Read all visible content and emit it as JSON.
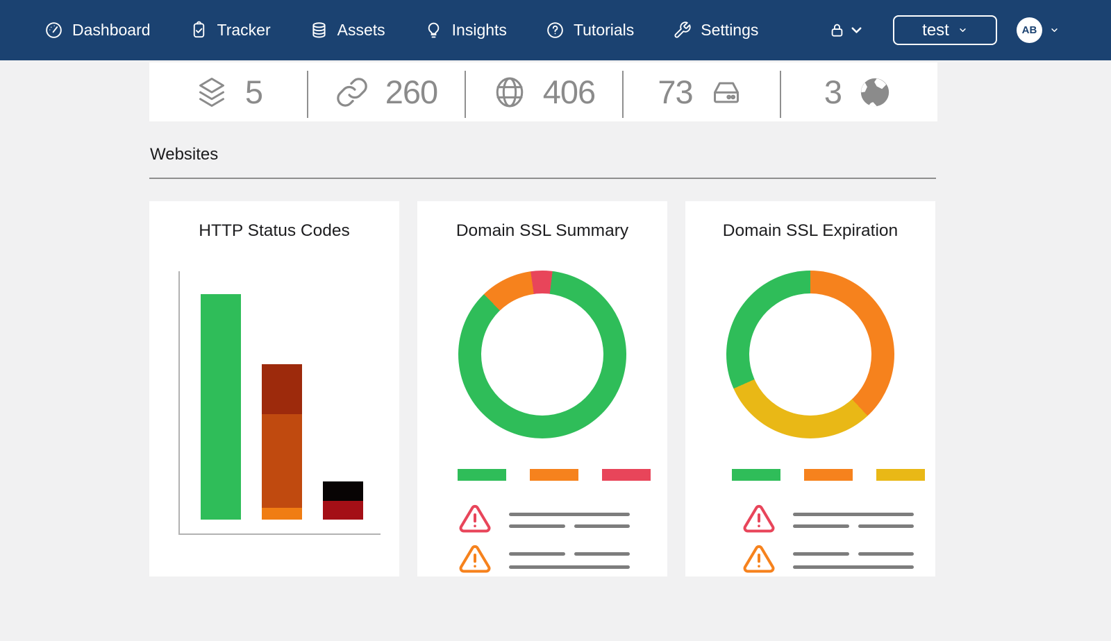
{
  "palette": {
    "navy": "#1b4271",
    "page_bg": "#f1f1f2",
    "card_bg": "#ffffff",
    "stat_gray": "#8b8b8b",
    "green": "#2fbd59",
    "orange": "#f6821d",
    "red": "#e8455a",
    "yellow": "#e9b816",
    "bar_dark_red": "#9d2a0c",
    "bar_rust": "#c04a0f",
    "bar_orange": "#f07d13",
    "bar_black": "#080404",
    "bar_crimson": "#a40f16",
    "skeleton": "#7d7d7d"
  },
  "nav": {
    "items": [
      {
        "icon": "dashboard-icon",
        "label": "Dashboard"
      },
      {
        "icon": "tracker-icon",
        "label": "Tracker"
      },
      {
        "icon": "assets-icon",
        "label": "Assets"
      },
      {
        "icon": "insights-icon",
        "label": "Insights"
      },
      {
        "icon": "tutorials-icon",
        "label": "Tutorials"
      },
      {
        "icon": "settings-icon",
        "label": "Settings"
      }
    ],
    "lock_icon": "lock-icon",
    "workspace_selector": {
      "label": "test",
      "chevron_icon": "chevron-down-icon"
    },
    "avatar": {
      "initials": "AB",
      "chevron_icon": "chevron-down-icon"
    }
  },
  "stats": {
    "items": [
      {
        "icon": "layers-icon",
        "value": "5",
        "icon_position": "left"
      },
      {
        "icon": "link-icon",
        "value": "260",
        "icon_position": "left"
      },
      {
        "icon": "globe-icon",
        "value": "406",
        "icon_position": "left"
      },
      {
        "icon": "server-icon",
        "value": "73",
        "icon_position": "right"
      },
      {
        "icon": "earth-icon",
        "value": "3",
        "icon_position": "right"
      }
    ]
  },
  "section": {
    "title": "Websites"
  },
  "cards": [
    {
      "title": "HTTP Status Codes",
      "chart_id": "http_status_codes"
    },
    {
      "title": "Domain SSL Summary",
      "chart_id": "domain_ssl_summary",
      "legend_colors": [
        "green",
        "orange",
        "red"
      ]
    },
    {
      "title": "Domain SSL Expiration",
      "chart_id": "domain_ssl_expiration",
      "legend_colors": [
        "green",
        "orange",
        "yellow"
      ]
    }
  ],
  "chart_data": [
    {
      "id": "http_status_codes",
      "type": "bar",
      "title": "HTTP Status Codes",
      "xlabel": "",
      "ylabel": "",
      "grid": false,
      "axis_tick_labels_visible": false,
      "value_unit": "pixel_height_proportion",
      "bars": [
        {
          "segments": [
            {
              "color": "green",
              "value": 325
            }
          ]
        },
        {
          "segments": [
            {
              "color": "bar_dark_red",
              "value": 72
            },
            {
              "color": "bar_rust",
              "value": 135
            },
            {
              "color": "bar_orange",
              "value": 17
            }
          ]
        },
        {
          "segments": [
            {
              "color": "bar_black",
              "value": 28
            },
            {
              "color": "bar_crimson",
              "value": 27
            }
          ]
        }
      ]
    },
    {
      "id": "domain_ssl_summary",
      "type": "donut",
      "title": "Domain SSL Summary",
      "legend_position": "bottom",
      "start_deg": 7,
      "slices": [
        {
          "color": "green",
          "deg": 309,
          "pct": 85.8
        },
        {
          "color": "orange",
          "deg": 36,
          "pct": 10.0
        },
        {
          "color": "red",
          "deg": 15,
          "pct": 4.2
        }
      ]
    },
    {
      "id": "domain_ssl_expiration",
      "type": "donut",
      "title": "Domain SSL Expiration",
      "legend_position": "bottom",
      "start_deg": 0,
      "slices": [
        {
          "color": "orange",
          "deg": 137,
          "pct": 38.1
        },
        {
          "color": "yellow",
          "deg": 109,
          "pct": 30.3
        },
        {
          "color": "green",
          "deg": 114,
          "pct": 31.6
        }
      ]
    }
  ]
}
